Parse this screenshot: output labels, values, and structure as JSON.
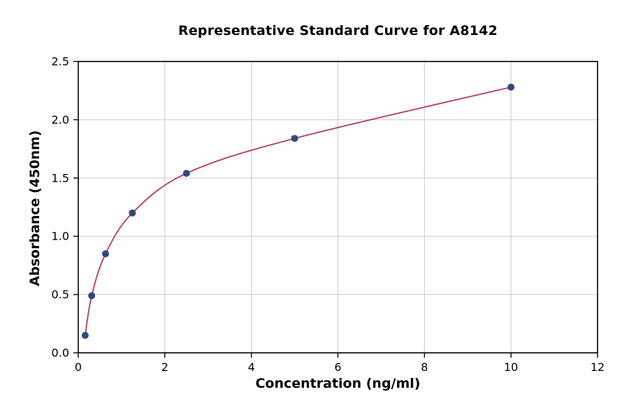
{
  "title": "Representative Standard Curve for A8142",
  "chart_data": {
    "type": "scatter",
    "title": "Representative Standard Curve for A8142",
    "xlabel": "Concentration (ng/ml)",
    "ylabel": "Absorbance (450nm)",
    "xlim": [
      0,
      12
    ],
    "ylim": [
      0,
      2.5
    ],
    "xticks": [
      "0",
      "2",
      "4",
      "6",
      "8",
      "10",
      "12"
    ],
    "yticks": [
      "0.0",
      "0.5",
      "1.0",
      "1.5",
      "2.0",
      "2.5"
    ],
    "grid": true,
    "legend": "none",
    "series": [
      {
        "name": "standard-points",
        "x": [
          0.16,
          0.31,
          0.63,
          1.25,
          2.5,
          5.0,
          10.0
        ],
        "y": [
          0.15,
          0.49,
          0.85,
          1.2,
          1.54,
          1.84,
          2.28
        ]
      }
    ],
    "curve": "smooth-fit-through-points",
    "colors": {
      "curve": "#b53a63",
      "points": "#2e4a7a",
      "grid": "#cccccc",
      "frame": "#000000",
      "background": "#ffffff"
    }
  }
}
